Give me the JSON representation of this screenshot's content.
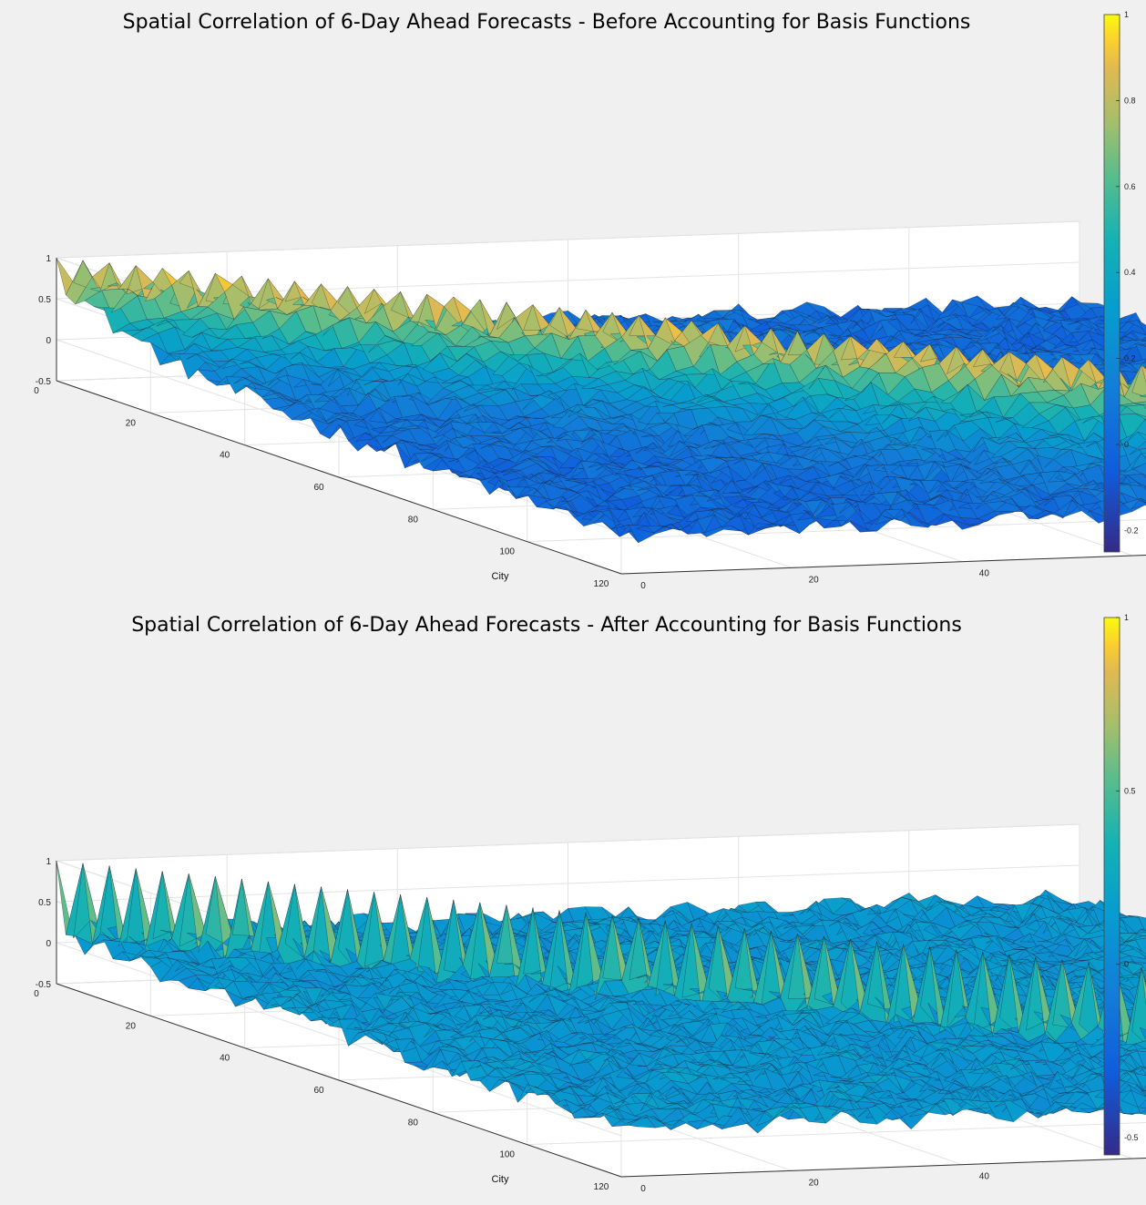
{
  "chart_data": [
    {
      "type": "surface",
      "title": "Spatial Correlation of 6-Day Ahead Forecasts - Before Accounting for Basis Functions",
      "x_label": "City",
      "y_label": "City",
      "x_ticks": [
        "0",
        "20",
        "40",
        "60",
        "80",
        "100",
        "120"
      ],
      "y_ticks": [
        "0",
        "20",
        "40",
        "60",
        "80",
        "100",
        "120"
      ],
      "z_ticks": [
        "-0.5",
        "0",
        "0.5",
        "1"
      ],
      "xlim": [
        0,
        120
      ],
      "ylim": [
        0,
        120
      ],
      "zlim": [
        -0.5,
        1
      ],
      "diagonal_value": 1,
      "near_diagonal_mean": 0.75,
      "off_diagonal_mean": 0.0,
      "colormap": "parula",
      "colorbar": {
        "ticks": [
          "1",
          "0.8",
          "0.6",
          "0.4",
          "0.2",
          "0",
          "-0.2"
        ],
        "range": [
          -0.25,
          1
        ]
      },
      "grid": true
    },
    {
      "type": "surface",
      "title": "Spatial Correlation of 6-Day Ahead Forecasts - After Accounting for Basis Functions",
      "x_label": "City",
      "y_label": "City",
      "x_ticks": [
        "0",
        "20",
        "40",
        "60",
        "80",
        "100",
        "120"
      ],
      "y_ticks": [
        "0",
        "20",
        "40",
        "60",
        "80",
        "100",
        "120"
      ],
      "z_ticks": [
        "-0.5",
        "0",
        "0.5",
        "1"
      ],
      "xlim": [
        0,
        120
      ],
      "ylim": [
        0,
        120
      ],
      "zlim": [
        -0.5,
        1
      ],
      "diagonal_value": 1,
      "near_diagonal_mean": 0.15,
      "off_diagonal_mean": 0.1,
      "colormap": "parula",
      "colorbar": {
        "ticks": [
          "1",
          "0.5",
          "0",
          "-0.5"
        ],
        "range": [
          -0.55,
          1
        ]
      },
      "grid": true
    }
  ]
}
